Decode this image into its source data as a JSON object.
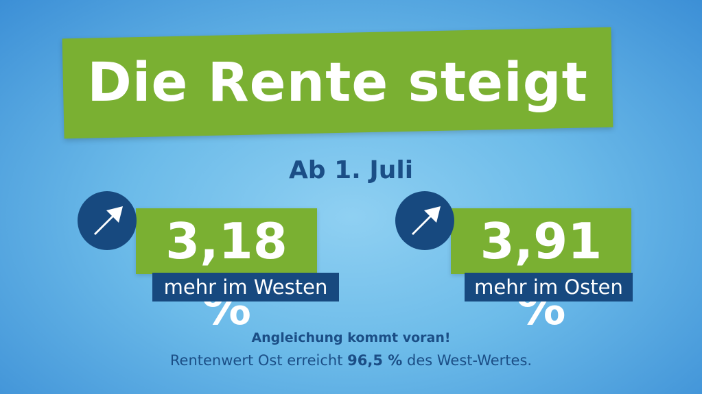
{
  "header": {
    "title": "Die Rente steigt",
    "date": "Ab 1. Juli"
  },
  "increases": [
    {
      "percent": "3,18 %",
      "label": "mehr im Westen"
    },
    {
      "percent": "3,91 %",
      "label": "mehr im Osten"
    }
  ],
  "footer": {
    "headline": "Angleichung kommt voran!",
    "text_before": "Rentenwert Ost erreicht",
    "highlight": "96,5 %",
    "text_after": "des West-Wertes."
  }
}
